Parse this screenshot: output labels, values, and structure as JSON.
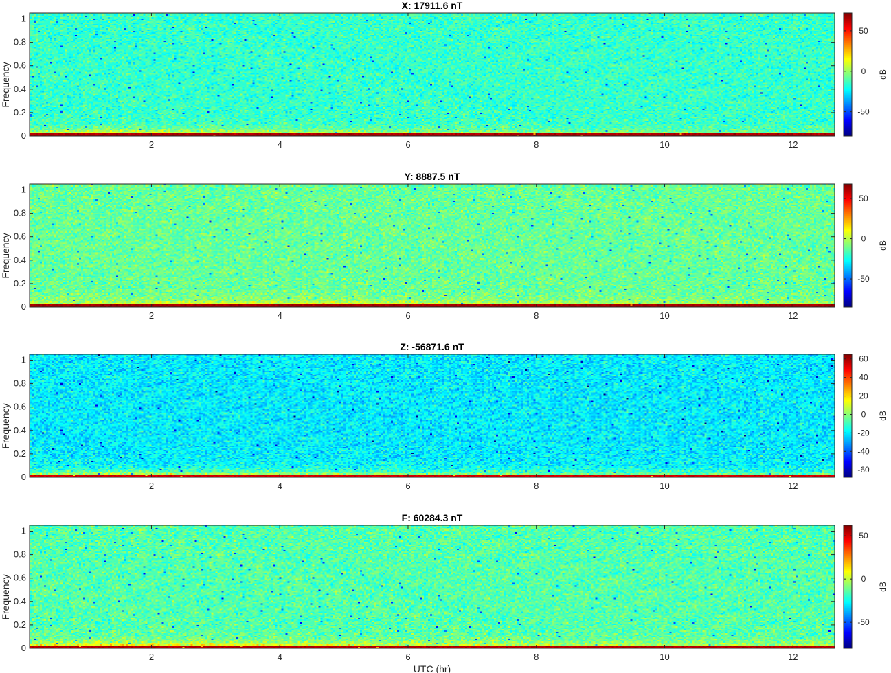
{
  "chart_data": [
    {
      "type": "heatmap",
      "title": "X: 17911.6 nT",
      "ylabel": "Frequency",
      "xlabel": "",
      "colorbar_label": "dB",
      "xlim": [
        0.1,
        12.65
      ],
      "ylim": [
        0,
        1.05
      ],
      "xticks": [
        2,
        4,
        6,
        8,
        10,
        12
      ],
      "yticks": [
        0,
        0.2,
        0.4,
        0.6,
        0.8,
        1
      ],
      "clim": [
        -80,
        72
      ],
      "cticks": [
        -50,
        0,
        50
      ],
      "background_db": -15,
      "low_band_db": 20,
      "dc_db": 65,
      "low_band_strength": [
        1.0,
        1.3,
        1.25,
        1.05,
        1.0,
        0.95,
        0.85,
        0.75,
        0.7,
        0.65,
        0.55,
        0.45,
        0.4
      ]
    },
    {
      "type": "heatmap",
      "title": "Y: 8887.5 nT",
      "ylabel": "Frequency",
      "xlabel": "",
      "colorbar_label": "dB",
      "xlim": [
        0.1,
        12.65
      ],
      "ylim": [
        0,
        1.05
      ],
      "xticks": [
        2,
        4,
        6,
        8,
        10,
        12
      ],
      "yticks": [
        0,
        0.2,
        0.4,
        0.6,
        0.8,
        1
      ],
      "clim": [
        -85,
        68
      ],
      "cticks": [
        -50,
        0,
        50
      ],
      "background_db": -12,
      "low_band_db": 18,
      "dc_db": 62,
      "low_band_strength": [
        0.8,
        0.9,
        1.1,
        1.0,
        1.2,
        1.1,
        0.9,
        0.8,
        0.75,
        0.7,
        0.7,
        0.65,
        0.6
      ]
    },
    {
      "type": "heatmap",
      "title": "Z: -56871.6 nT",
      "ylabel": "Frequency",
      "xlabel": "",
      "colorbar_label": "dB",
      "xlim": [
        0.1,
        12.65
      ],
      "ylim": [
        0,
        1.05
      ],
      "xticks": [
        2,
        4,
        6,
        8,
        10,
        12
      ],
      "yticks": [
        0,
        0.2,
        0.4,
        0.6,
        0.8,
        1
      ],
      "clim": [
        -68,
        65
      ],
      "cticks": [
        -60,
        -40,
        -20,
        0,
        20,
        40,
        60
      ],
      "background_db": -20,
      "low_band_db": 18,
      "dc_db": 55,
      "low_band_strength": [
        1.0,
        1.2,
        1.3,
        1.15,
        1.1,
        1.0,
        0.9,
        0.85,
        0.8,
        0.75,
        0.7,
        0.65,
        0.65
      ]
    },
    {
      "type": "heatmap",
      "title": "F: 60284.3 nT",
      "ylabel": "Frequency",
      "xlabel": "UTC (hr)",
      "colorbar_label": "dB",
      "xlim": [
        0.1,
        12.65
      ],
      "ylim": [
        0,
        1.05
      ],
      "xticks": [
        2,
        4,
        6,
        8,
        10,
        12
      ],
      "yticks": [
        0,
        0.2,
        0.4,
        0.6,
        0.8,
        1
      ],
      "clim": [
        -80,
        62
      ],
      "cticks": [
        -50,
        0,
        50
      ],
      "background_db": -15,
      "low_band_db": 20,
      "dc_db": 55,
      "low_band_strength": [
        1.0,
        1.2,
        1.3,
        1.1,
        1.05,
        1.0,
        0.9,
        0.85,
        0.8,
        0.7,
        0.65,
        0.6,
        0.6
      ]
    }
  ]
}
